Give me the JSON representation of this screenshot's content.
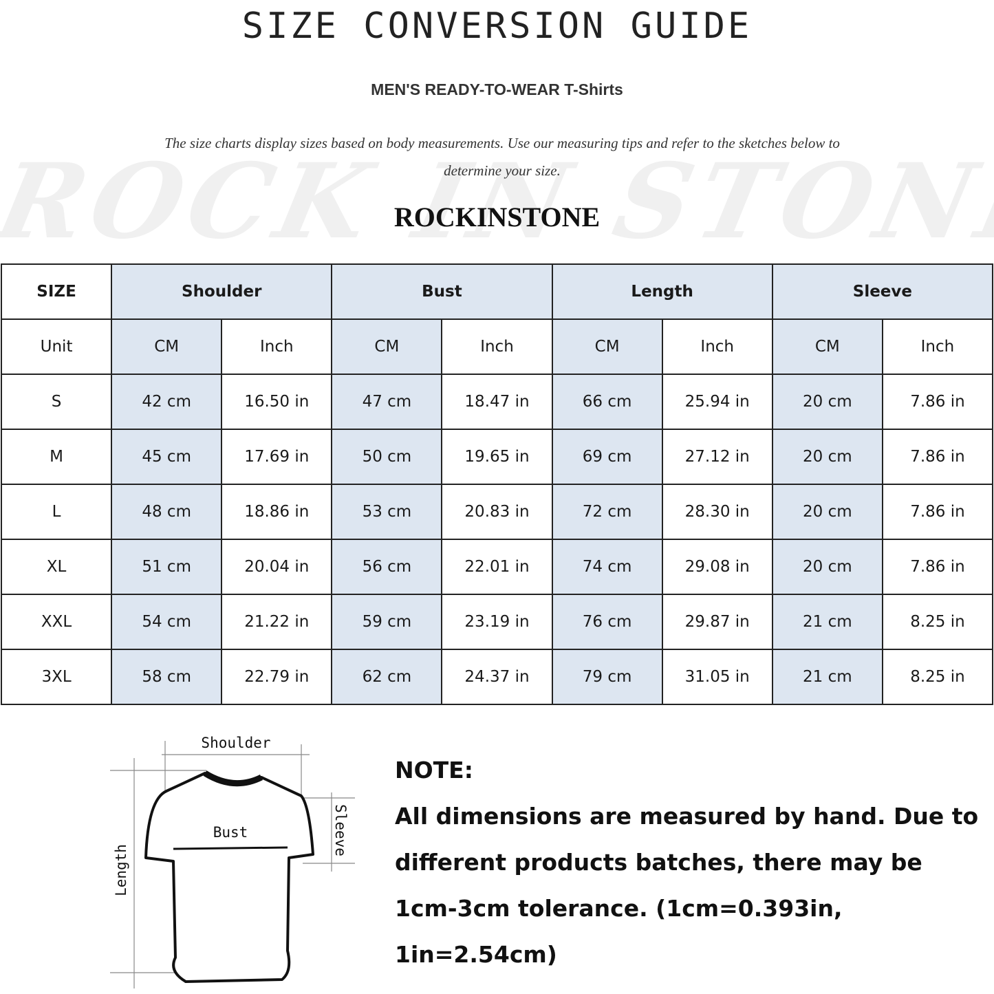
{
  "title": "SIZE CONVERSION GUIDE",
  "subtitle": "MEN'S READY-TO-WEAR T-Shirts",
  "intro": "The size charts display sizes based on body measurements. Use our measuring tips and refer to the sketches below to determine your size.",
  "watermark": "ROCK IN STONE",
  "brand": "ROCKINSTONE",
  "colors": {
    "highlight": "#dde6f1",
    "border": "#222222"
  },
  "table": {
    "size_header": "SIZE",
    "groups": [
      "Shoulder",
      "Bust",
      "Length",
      "Sleeve"
    ],
    "unit_label": "Unit",
    "units": [
      "CM",
      "Inch",
      "CM",
      "Inch",
      "CM",
      "Inch",
      "CM",
      "Inch"
    ],
    "rows": [
      {
        "size": "S",
        "values": [
          "42 cm",
          "16.50 in",
          "47 cm",
          "18.47  in",
          "66 cm",
          "25.94  in",
          "20 cm",
          "7.86  in"
        ]
      },
      {
        "size": "M",
        "values": [
          "45 cm",
          "17.69  in",
          "50 cm",
          "19.65  in",
          "69 cm",
          "27.12  in",
          "20 cm",
          "7.86  in"
        ]
      },
      {
        "size": "L",
        "values": [
          "48 cm",
          "18.86  in",
          "53 cm",
          "20.83  in",
          "72 cm",
          "28.30  in",
          "20 cm",
          "7.86  in"
        ]
      },
      {
        "size": "XL",
        "values": [
          "51 cm",
          "20.04  in",
          "56 cm",
          "22.01  in",
          "74 cm",
          "29.08  in",
          "20 cm",
          "7.86  in"
        ]
      },
      {
        "size": "XXL",
        "values": [
          "54 cm",
          "21.22  in",
          "59 cm",
          "23.19  in",
          "76 cm",
          "29.87  in",
          "21 cm",
          "8.25  in"
        ]
      },
      {
        "size": "3XL",
        "values": [
          "58 cm",
          "22.79  in",
          "62 cm",
          "24.37  in",
          "79 cm",
          "31.05  in",
          "21 cm",
          "8.25  in"
        ]
      }
    ]
  },
  "diagram": {
    "shoulder": "Shoulder",
    "bust": "Bust",
    "sleeve": "Sleeve",
    "length": "Length"
  },
  "note": {
    "heading": "NOTE:",
    "lines": [
      "All dimensions are measured by hand. Due to",
      "different products batches, there may be",
      "1cm-3cm tolerance. (1cm=0.393in, 1in=2.54cm)"
    ]
  }
}
